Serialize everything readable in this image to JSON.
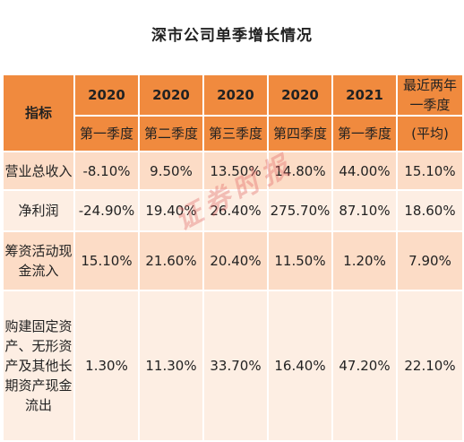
{
  "title": "深市公司单季增长情况",
  "header": {
    "corner": "指标",
    "years": [
      "2020",
      "2020",
      "2020",
      "2020",
      "2021"
    ],
    "quarters": [
      "第一季度",
      "第二季度",
      "第三季度",
      "第四季度",
      "第一季度"
    ],
    "last_top": "最近两年一季度",
    "last_bottom": "(平均)"
  },
  "rows": [
    {
      "label": "营业总收入",
      "values": [
        "-8.10%",
        "9.50%",
        "13.50%",
        "14.80%",
        "44.00%",
        "15.10%"
      ]
    },
    {
      "label": "净利润",
      "values": [
        "-24.90%",
        "19.40%",
        "26.40%",
        "275.70%",
        "87.10%",
        "18.60%"
      ]
    },
    {
      "label": "筹资活动现金流入",
      "values": [
        "15.10%",
        "21.60%",
        "20.40%",
        "11.50%",
        "1.20%",
        "7.90%"
      ]
    },
    {
      "label": "购建固定资产、无形资产及其他长期资产现金流出",
      "values": [
        "1.30%",
        "11.30%",
        "33.70%",
        "16.40%",
        "47.20%",
        "22.10%"
      ]
    }
  ],
  "watermark": "证券时报",
  "colors": {
    "header": "#f08a3e",
    "row_dark": "#fcdcc6",
    "row_light": "#fdeee3"
  }
}
